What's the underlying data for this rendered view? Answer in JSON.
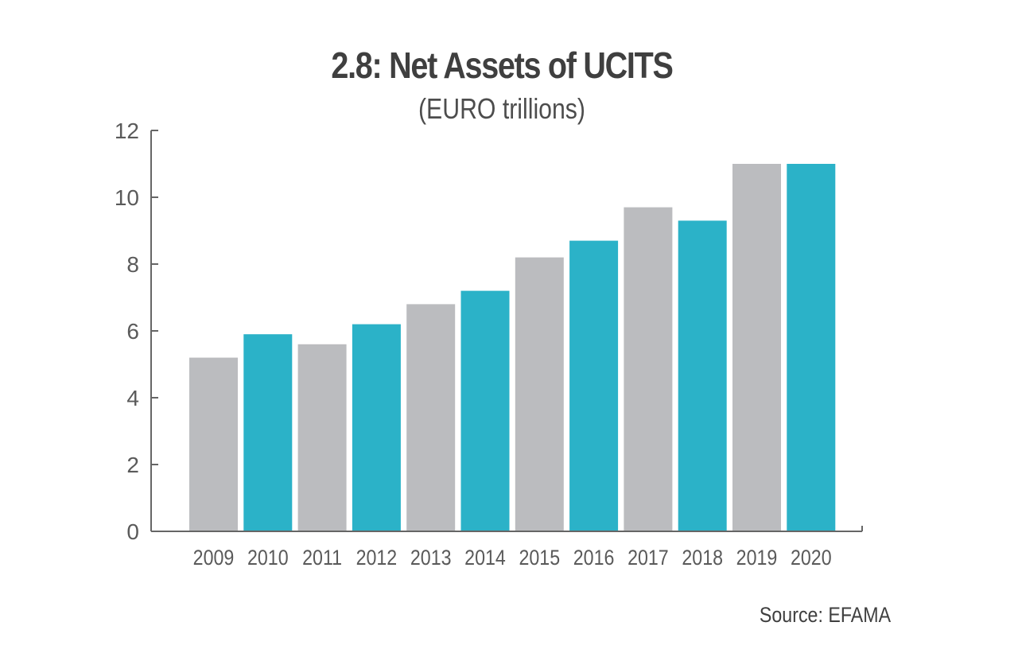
{
  "chart_data": {
    "type": "bar",
    "title": "2.8: Net Assets of UCITS",
    "subtitle": "(EURO trillions)",
    "source": "Source: EFAMA",
    "categories": [
      "2009",
      "2010",
      "2011",
      "2012",
      "2013",
      "2014",
      "2015",
      "2016",
      "2017",
      "2018",
      "2019",
      "2020"
    ],
    "values": [
      5.2,
      5.9,
      5.6,
      6.2,
      6.8,
      7.2,
      8.2,
      8.7,
      9.7,
      9.3,
      11.0,
      11.0
    ],
    "ylim": [
      0,
      12
    ],
    "yticks": [
      "0",
      "2",
      "4",
      "6",
      "8",
      "10",
      "12"
    ],
    "xlabel": "",
    "ylabel": "",
    "grid": false,
    "legend": "none",
    "colors": {
      "alternating": [
        "#bbbcbf",
        "#2bb2c8"
      ],
      "axis": "#666666",
      "text": "#5a5a5a"
    }
  }
}
